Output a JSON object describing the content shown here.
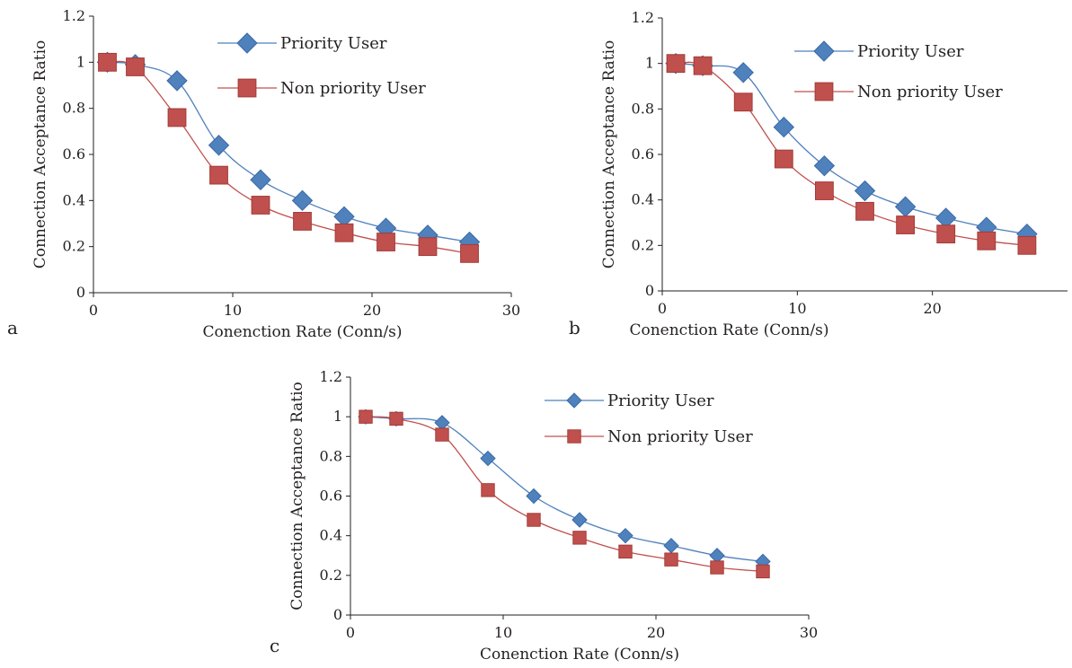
{
  "figure": {
    "panel_labels": [
      "a",
      "b",
      "c"
    ]
  },
  "colors": {
    "priority": "#4f81bd",
    "priority_edge": "#3a6aa6",
    "non_priority": "#c0504d",
    "non_priority_edge": "#a33b38",
    "axis": "#231f20"
  },
  "chart_data": [
    {
      "panel": "a",
      "type": "line",
      "xlabel": "Conenction Rate (Conn/s)",
      "ylabel": "Connection Acceptance Ratio",
      "xlim": [
        0,
        30
      ],
      "ylim": [
        0,
        1.2
      ],
      "xticks": [
        "0",
        "10",
        "20",
        "30"
      ],
      "yticks": [
        "0",
        "0.2",
        "0.4",
        "0.6",
        "0.8",
        "1",
        "1.2"
      ],
      "legend_position": "top-right",
      "x": [
        1,
        3,
        6,
        9,
        12,
        15,
        18,
        21,
        24,
        27
      ],
      "series": [
        {
          "name": "Priority User",
          "marker": "diamond",
          "values": [
            1.0,
            0.99,
            0.92,
            0.64,
            0.49,
            0.4,
            0.33,
            0.28,
            0.25,
            0.22
          ]
        },
        {
          "name": "Non priority User",
          "marker": "square",
          "values": [
            1.0,
            0.98,
            0.76,
            0.51,
            0.38,
            0.31,
            0.26,
            0.22,
            0.2,
            0.17
          ]
        }
      ]
    },
    {
      "panel": "b",
      "type": "line",
      "xlabel": "Conenction Rate (Conn/s)",
      "ylabel": "Connection Acceptance Ratio",
      "xlim": [
        0,
        30
      ],
      "ylim": [
        0,
        1.2
      ],
      "xticks": [
        "0",
        "10",
        "20"
      ],
      "yticks": [
        "0",
        "0.2",
        "0.4",
        "0.6",
        "0.8",
        "1",
        "1.2"
      ],
      "legend_position": "top-right",
      "x": [
        1,
        3,
        6,
        9,
        12,
        15,
        18,
        21,
        24,
        27
      ],
      "series": [
        {
          "name": "Priority User",
          "marker": "diamond",
          "values": [
            1.0,
            0.99,
            0.96,
            0.72,
            0.55,
            0.44,
            0.37,
            0.32,
            0.28,
            0.25
          ]
        },
        {
          "name": "Non priority User",
          "marker": "square",
          "values": [
            1.0,
            0.99,
            0.83,
            0.58,
            0.44,
            0.35,
            0.29,
            0.25,
            0.22,
            0.2
          ]
        }
      ]
    },
    {
      "panel": "c",
      "type": "line",
      "xlabel": "Conenction Rate (Conn/s)",
      "ylabel": "Connection Acceptance Ratio",
      "xlim": [
        0,
        30
      ],
      "ylim": [
        0,
        1.2
      ],
      "xticks": [
        "0",
        "10",
        "20",
        "30"
      ],
      "yticks": [
        "0",
        "0.2",
        "0.4",
        "0.6",
        "0.8",
        "1",
        "1.2"
      ],
      "legend_position": "top-right",
      "x": [
        1,
        3,
        6,
        9,
        12,
        15,
        18,
        21,
        24,
        27
      ],
      "series": [
        {
          "name": "Priority User",
          "marker": "diamond",
          "values": [
            1.0,
            0.99,
            0.97,
            0.79,
            0.6,
            0.48,
            0.4,
            0.35,
            0.3,
            0.27
          ]
        },
        {
          "name": "Non priority User",
          "marker": "square",
          "values": [
            1.0,
            0.99,
            0.91,
            0.63,
            0.48,
            0.39,
            0.32,
            0.28,
            0.24,
            0.22
          ]
        }
      ]
    }
  ]
}
